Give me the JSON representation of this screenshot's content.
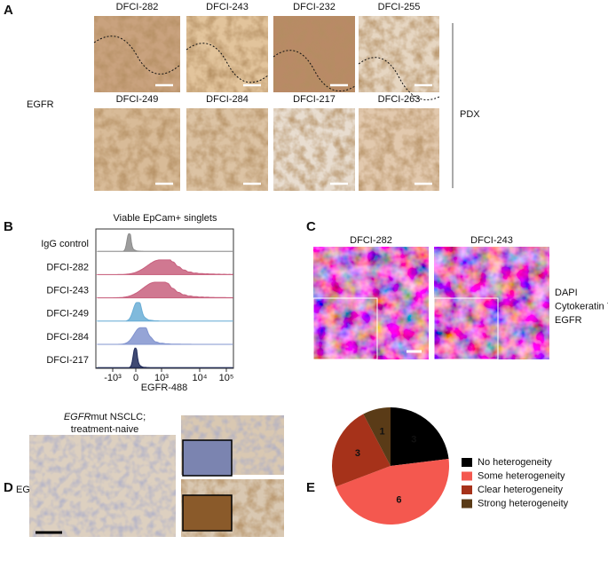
{
  "panel_a": {
    "label": "A",
    "row_label": "EGFR",
    "side_label": "PDX",
    "samples": [
      "DFCI-282",
      "DFCI-243",
      "DFCI-232",
      "DFCI-255",
      "DFCI-249",
      "DFCI-284",
      "DFCI-217",
      "DFCI-263"
    ]
  },
  "panel_b": {
    "label": "B",
    "title": "Viable EpCam+ singlets",
    "rows": [
      "IgG control",
      "DFCI-282",
      "DFCI-243",
      "DFCI-249",
      "DFCI-284",
      "DFCI-217"
    ],
    "row_colors": [
      "#8c8c8c",
      "#c8607e",
      "#c8607e",
      "#6aaed6",
      "#8294cf",
      "#1f2a5a"
    ],
    "x_ticks": [
      "-10³",
      "0",
      "10³",
      "10⁴",
      "10⁵"
    ],
    "x_label": "EGFR-488"
  },
  "panel_c": {
    "label": "C",
    "samples": [
      "DFCI-282",
      "DFCI-243"
    ],
    "legend": [
      {
        "name": "DAPI",
        "color": "#4a5ae8"
      },
      {
        "name": "Cytokeratin 7",
        "color": "#3cb44a"
      },
      {
        "name": "EGFR",
        "color": "#e8333a"
      }
    ]
  },
  "panel_d": {
    "label": "D",
    "note_italic": "EGFR",
    "note_rest": "mut NSCLC;",
    "note_line2": "treatment-naive",
    "row_label": "EGFR"
  },
  "panel_e": {
    "label": "E",
    "type": "pie",
    "categories": [
      "No heterogeneity",
      "Some heterogeneity",
      "Clear heterogeneity",
      "Strong heterogeneity"
    ],
    "values": [
      3,
      6,
      3,
      1
    ],
    "colors": [
      "#000000",
      "#f4584f",
      "#a6321a",
      "#5a3b17"
    ]
  }
}
